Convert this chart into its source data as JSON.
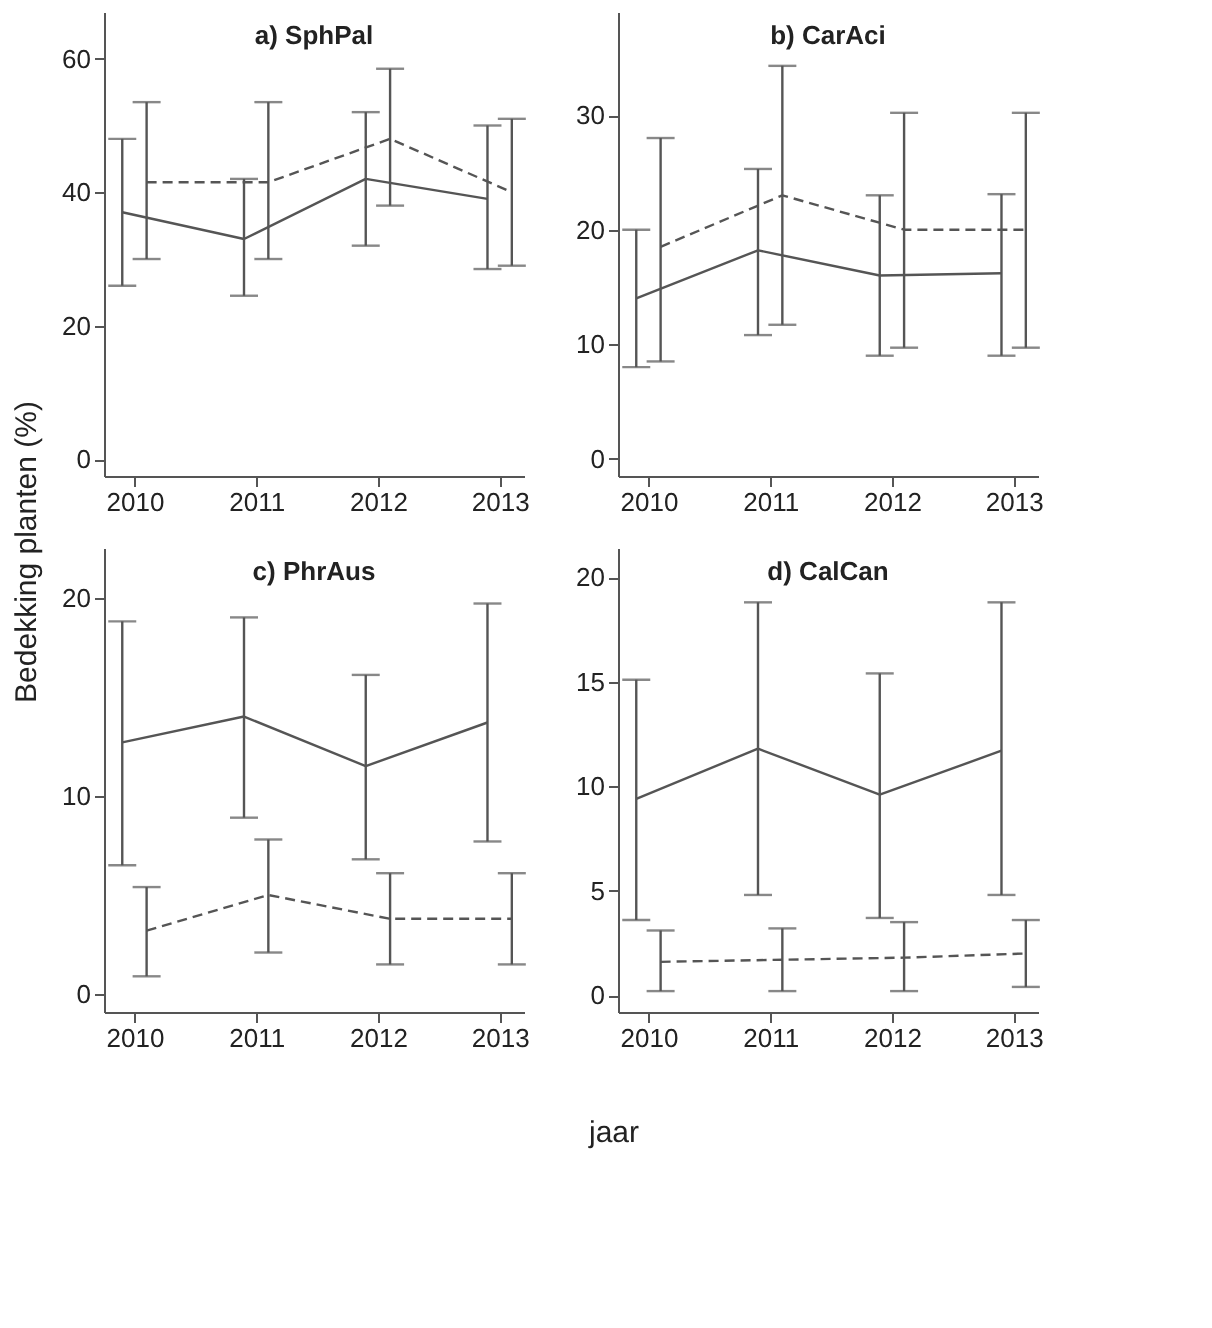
{
  "chart_data": [
    {
      "type": "line",
      "title": "a) SphPal",
      "ylabel": "Bedekking planten (%)",
      "xlim": [
        2009.75,
        2013.2
      ],
      "xticks": [
        2010,
        2011,
        2012,
        2013
      ],
      "ylim": [
        -2.5,
        67
      ],
      "yticks": [
        0,
        20,
        40,
        60
      ],
      "grid": false,
      "marker": "none",
      "series": [
        {
          "color": "#555555",
          "line_style": "solid",
          "x": [
            2009.9,
            2010.9,
            2011.9,
            2012.9
          ],
          "values": [
            37,
            33,
            42,
            39
          ],
          "errors": [
            [
              26,
              48
            ],
            [
              24.5,
              42
            ],
            [
              32,
              52
            ],
            [
              28.5,
              50
            ]
          ]
        },
        {
          "color": "#555555",
          "line_style": "dashed",
          "x": [
            2010.1,
            2011.1,
            2012.1,
            2013.1
          ],
          "values": [
            41.5,
            41.5,
            48,
            40
          ],
          "errors": [
            [
              30,
              53.5
            ],
            [
              30,
              53.5
            ],
            [
              38,
              58.5
            ],
            [
              29,
              51
            ]
          ]
        }
      ]
    },
    {
      "type": "line",
      "title": "b) CarAci",
      "xlim": [
        2009.75,
        2013.2
      ],
      "xticks": [
        2010,
        2011,
        2012,
        2013
      ],
      "ylim": [
        -1.5,
        39
      ],
      "yticks": [
        0,
        10,
        20,
        30
      ],
      "grid": false,
      "marker": "none",
      "series": [
        {
          "color": "#555555",
          "line_style": "solid",
          "x": [
            2009.9,
            2010.9,
            2011.9,
            2012.9
          ],
          "values": [
            14,
            18.2,
            16,
            16.2
          ],
          "errors": [
            [
              8,
              20
            ],
            [
              10.8,
              25.3
            ],
            [
              9,
              23
            ],
            [
              9,
              23.1
            ]
          ]
        },
        {
          "color": "#555555",
          "line_style": "dashed",
          "x": [
            2010.1,
            2011.1,
            2012.1,
            2013.1
          ],
          "values": [
            18.5,
            23,
            20,
            20
          ],
          "errors": [
            [
              8.5,
              28
            ],
            [
              11.7,
              34.3
            ],
            [
              9.7,
              30.2
            ],
            [
              9.7,
              30.2
            ]
          ]
        }
      ]
    },
    {
      "type": "line",
      "title": "c) PhrAus",
      "xlabel": "jaar",
      "xlim": [
        2009.75,
        2013.2
      ],
      "xticks": [
        2010,
        2011,
        2012,
        2013
      ],
      "ylim": [
        -0.9,
        22.5
      ],
      "yticks": [
        0,
        10,
        20
      ],
      "grid": false,
      "marker": "none",
      "series": [
        {
          "color": "#555555",
          "line_style": "solid",
          "x": [
            2009.9,
            2010.9,
            2011.9,
            2012.9
          ],
          "values": [
            12.7,
            14,
            11.5,
            13.7
          ],
          "errors": [
            [
              6.5,
              18.8
            ],
            [
              8.9,
              19
            ],
            [
              6.8,
              16.1
            ],
            [
              7.7,
              19.7
            ]
          ]
        },
        {
          "color": "#555555",
          "line_style": "dashed",
          "x": [
            2010.1,
            2011.1,
            2012.1,
            2013.1
          ],
          "values": [
            3.2,
            5,
            3.8,
            3.8
          ],
          "errors": [
            [
              0.9,
              5.4
            ],
            [
              2.1,
              7.8
            ],
            [
              1.5,
              6.1
            ],
            [
              1.5,
              6.1
            ]
          ]
        }
      ]
    },
    {
      "type": "line",
      "title": "d) CalCan",
      "xlim": [
        2009.75,
        2013.2
      ],
      "xticks": [
        2010,
        2011,
        2012,
        2013
      ],
      "ylim": [
        -0.8,
        21.4
      ],
      "yticks": [
        0,
        5,
        10,
        15,
        20
      ],
      "grid": false,
      "marker": "none",
      "series": [
        {
          "color": "#555555",
          "line_style": "solid",
          "x": [
            2009.9,
            2010.9,
            2011.9,
            2012.9
          ],
          "values": [
            9.4,
            11.8,
            9.6,
            11.7
          ],
          "errors": [
            [
              3.6,
              15.1
            ],
            [
              4.8,
              18.8
            ],
            [
              3.7,
              15.4
            ],
            [
              4.8,
              18.8
            ]
          ]
        },
        {
          "color": "#555555",
          "line_style": "dashed",
          "x": [
            2010.1,
            2011.1,
            2012.1,
            2013.1
          ],
          "values": [
            1.6,
            1.7,
            1.8,
            2.0
          ],
          "errors": [
            [
              0.2,
              3.1
            ],
            [
              0.2,
              3.2
            ],
            [
              0.2,
              3.5
            ],
            [
              0.4,
              3.6
            ]
          ]
        }
      ]
    }
  ]
}
